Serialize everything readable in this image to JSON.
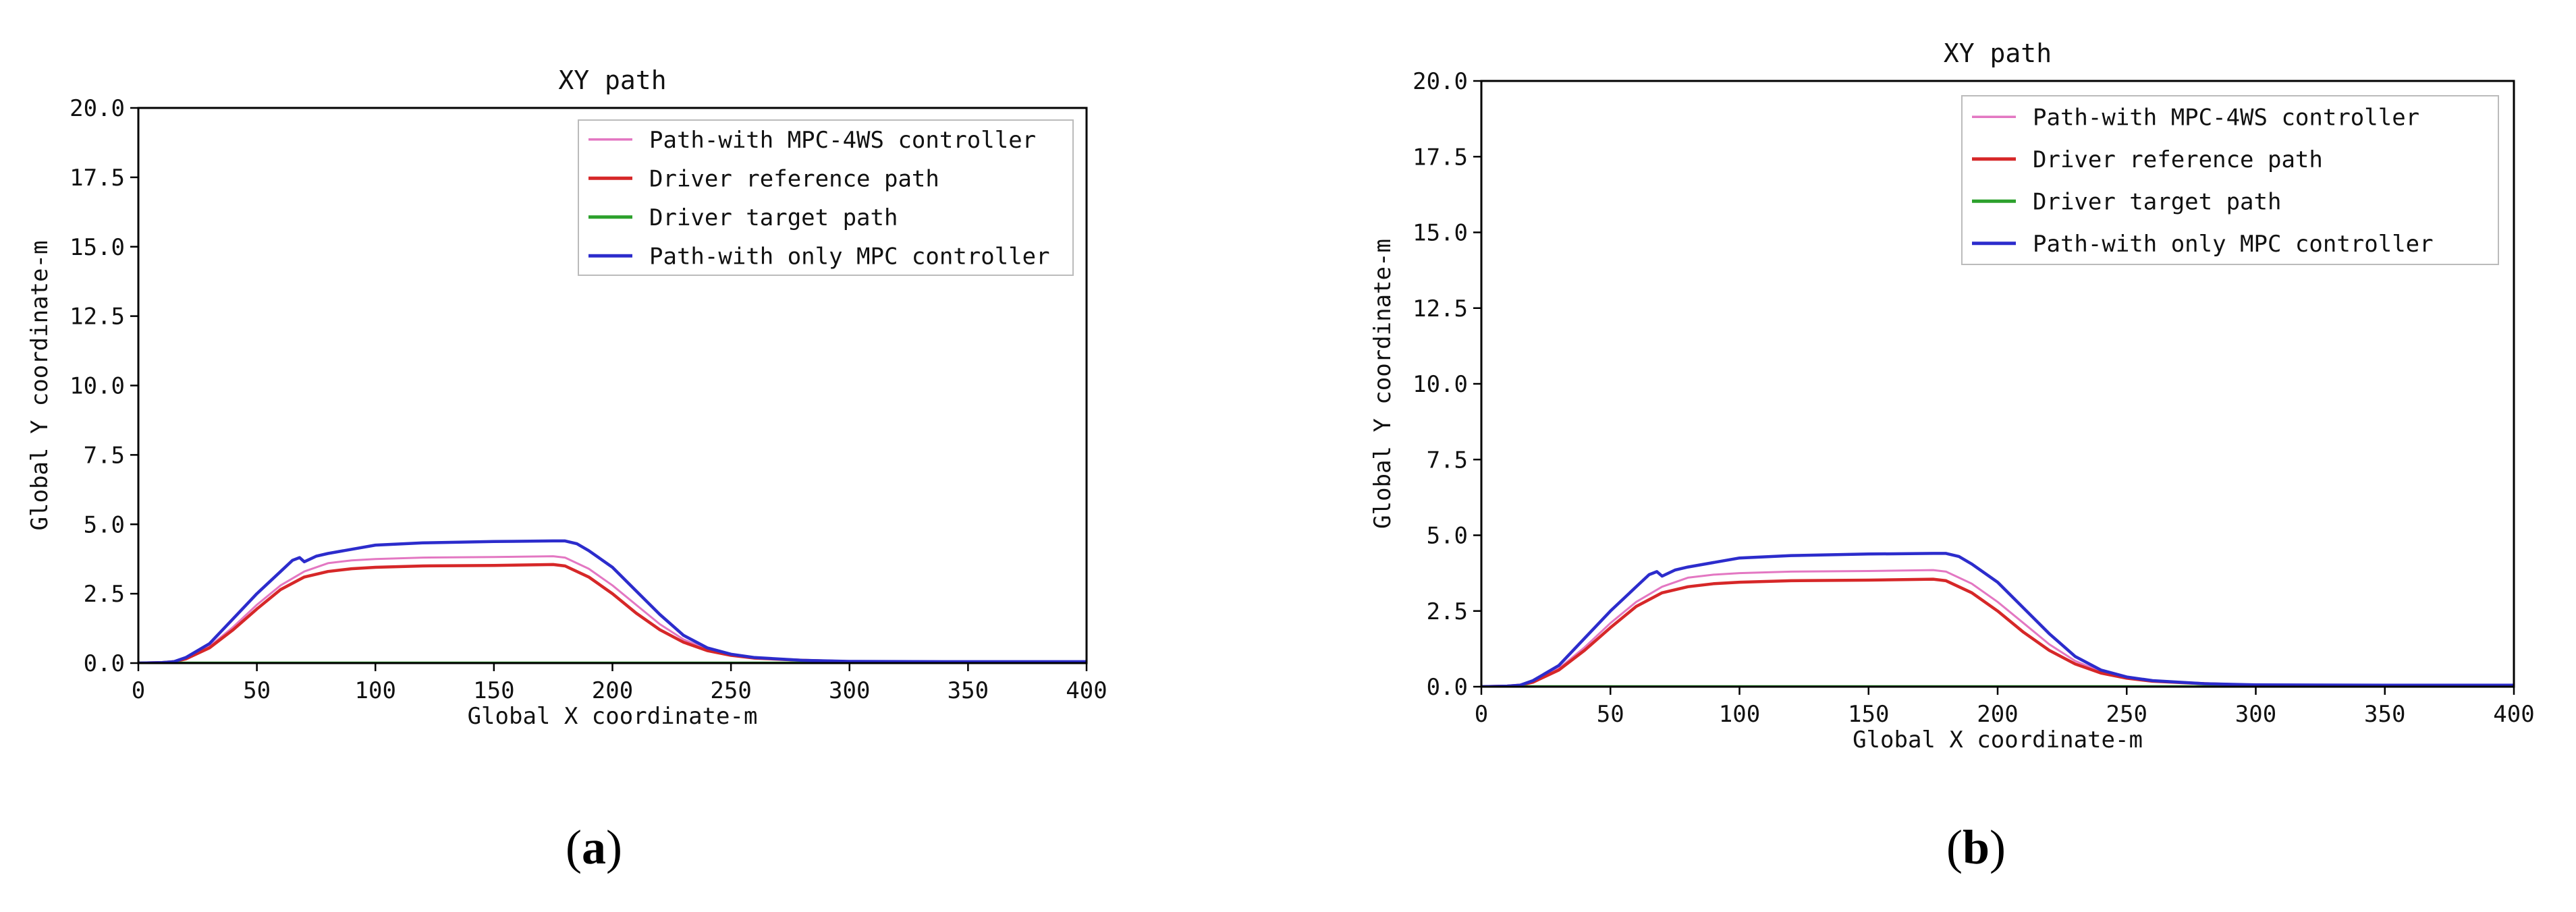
{
  "figure": {
    "panels": [
      {
        "label_open": "(",
        "label_letter": "a",
        "label_close": ")"
      },
      {
        "label_open": "(",
        "label_letter": "b",
        "label_close": ")"
      }
    ]
  },
  "chart_data": [
    {
      "type": "line",
      "title": "XY path",
      "xlabel": "Global X coordinate-m",
      "ylabel": "Global Y coordinate-m",
      "xlim": [
        0,
        400
      ],
      "ylim": [
        0,
        20
      ],
      "xticks": [
        "0",
        "50",
        "100",
        "150",
        "200",
        "250",
        "300",
        "350",
        "400"
      ],
      "yticks": [
        "0.0",
        "2.5",
        "5.0",
        "7.5",
        "10.0",
        "12.5",
        "15.0",
        "17.5",
        "20.0"
      ],
      "grid": false,
      "legend_position": "top-right",
      "series": [
        {
          "name": "Path-with MPC-4WS controller",
          "color": "#e377c2",
          "x": [
            0,
            10,
            15,
            20,
            30,
            40,
            50,
            60,
            70,
            80,
            90,
            100,
            120,
            150,
            175,
            180,
            190,
            200,
            210,
            220,
            230,
            240,
            250,
            260,
            280,
            300,
            350,
            400
          ],
          "y": [
            0,
            0.02,
            0.05,
            0.15,
            0.6,
            1.3,
            2.1,
            2.8,
            3.3,
            3.6,
            3.7,
            3.75,
            3.8,
            3.82,
            3.85,
            3.8,
            3.4,
            2.8,
            2.1,
            1.4,
            0.85,
            0.5,
            0.3,
            0.2,
            0.1,
            0.05,
            0.04,
            0.04
          ]
        },
        {
          "name": "Driver reference path",
          "color": "#d62728",
          "x": [
            0,
            10,
            15,
            20,
            30,
            40,
            50,
            60,
            70,
            80,
            90,
            100,
            120,
            150,
            175,
            180,
            190,
            200,
            210,
            220,
            230,
            240,
            250,
            260,
            280,
            300,
            350,
            400
          ],
          "y": [
            0,
            0.02,
            0.05,
            0.15,
            0.55,
            1.2,
            1.95,
            2.65,
            3.1,
            3.3,
            3.4,
            3.45,
            3.5,
            3.52,
            3.55,
            3.5,
            3.1,
            2.5,
            1.8,
            1.2,
            0.75,
            0.45,
            0.28,
            0.18,
            0.1,
            0.05,
            0.04,
            0.04
          ]
        },
        {
          "name": "Driver target path",
          "color": "#2ca02c",
          "x": [
            0,
            400
          ],
          "y": [
            0,
            0
          ]
        },
        {
          "name": "Path-with only MPC controller",
          "color": "#2c2ccc",
          "x": [
            0,
            10,
            15,
            20,
            30,
            40,
            50,
            60,
            65,
            68,
            70,
            75,
            80,
            90,
            100,
            120,
            150,
            175,
            180,
            185,
            190,
            200,
            210,
            220,
            230,
            240,
            250,
            260,
            280,
            300,
            350,
            400
          ],
          "y": [
            0,
            0.02,
            0.05,
            0.2,
            0.7,
            1.6,
            2.5,
            3.3,
            3.7,
            3.8,
            3.65,
            3.85,
            3.95,
            4.1,
            4.25,
            4.33,
            4.38,
            4.4,
            4.4,
            4.3,
            4.05,
            3.45,
            2.6,
            1.75,
            1.0,
            0.55,
            0.32,
            0.2,
            0.1,
            0.06,
            0.05,
            0.05
          ]
        }
      ]
    },
    {
      "type": "line",
      "title": "XY path",
      "xlabel": "Global X coordinate-m",
      "ylabel": "Global Y coordinate-m",
      "xlim": [
        0,
        400
      ],
      "ylim": [
        0,
        20
      ],
      "xticks": [
        "0",
        "50",
        "100",
        "150",
        "200",
        "250",
        "300",
        "350",
        "400"
      ],
      "yticks": [
        "0.0",
        "2.5",
        "5.0",
        "7.5",
        "10.0",
        "12.5",
        "15.0",
        "17.5",
        "20.0"
      ],
      "grid": false,
      "legend_position": "top-right",
      "series": [
        {
          "name": "Path-with MPC-4WS controller",
          "color": "#e377c2",
          "x": [
            0,
            10,
            15,
            20,
            30,
            40,
            50,
            60,
            70,
            80,
            90,
            100,
            120,
            150,
            175,
            180,
            190,
            200,
            210,
            220,
            230,
            240,
            250,
            260,
            280,
            300,
            350,
            400
          ],
          "y": [
            0,
            0.02,
            0.05,
            0.15,
            0.6,
            1.3,
            2.1,
            2.8,
            3.3,
            3.6,
            3.7,
            3.75,
            3.8,
            3.82,
            3.85,
            3.8,
            3.4,
            2.8,
            2.1,
            1.4,
            0.85,
            0.5,
            0.3,
            0.2,
            0.1,
            0.05,
            0.04,
            0.04
          ]
        },
        {
          "name": "Driver reference path",
          "color": "#d62728",
          "x": [
            0,
            10,
            15,
            20,
            30,
            40,
            50,
            60,
            70,
            80,
            90,
            100,
            120,
            150,
            175,
            180,
            190,
            200,
            210,
            220,
            230,
            240,
            250,
            260,
            280,
            300,
            350,
            400
          ],
          "y": [
            0,
            0.02,
            0.05,
            0.15,
            0.55,
            1.2,
            1.95,
            2.65,
            3.1,
            3.3,
            3.4,
            3.45,
            3.5,
            3.52,
            3.55,
            3.5,
            3.1,
            2.5,
            1.8,
            1.2,
            0.75,
            0.45,
            0.28,
            0.18,
            0.1,
            0.05,
            0.04,
            0.04
          ]
        },
        {
          "name": "Driver target path",
          "color": "#2ca02c",
          "x": [
            0,
            400
          ],
          "y": [
            0,
            0
          ]
        },
        {
          "name": "Path-with only MPC controller",
          "color": "#2c2ccc",
          "x": [
            0,
            10,
            15,
            20,
            30,
            40,
            50,
            60,
            65,
            68,
            70,
            75,
            80,
            90,
            100,
            120,
            150,
            175,
            180,
            185,
            190,
            200,
            210,
            220,
            230,
            240,
            250,
            260,
            280,
            300,
            350,
            400
          ],
          "y": [
            0,
            0.02,
            0.05,
            0.2,
            0.7,
            1.6,
            2.5,
            3.3,
            3.7,
            3.8,
            3.65,
            3.85,
            3.95,
            4.1,
            4.25,
            4.33,
            4.38,
            4.4,
            4.4,
            4.3,
            4.05,
            3.45,
            2.6,
            1.75,
            1.0,
            0.55,
            0.32,
            0.2,
            0.1,
            0.06,
            0.05,
            0.05
          ]
        }
      ]
    }
  ]
}
